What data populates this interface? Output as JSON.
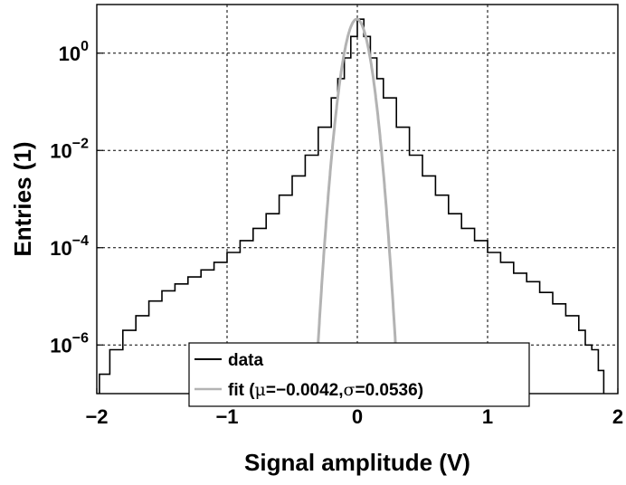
{
  "chart_data": {
    "type": "line",
    "xlabel": "Signal amplitude (V)",
    "ylabel": "Entries (1)",
    "xlim": [
      -2,
      2
    ],
    "ylim": [
      1e-07,
      10
    ],
    "y_scale": "log",
    "grid": true,
    "legend_position": "bottom-center",
    "x_ticks": [
      {
        "value": -2,
        "label": "−2"
      },
      {
        "value": -1,
        "label": "−1"
      },
      {
        "value": 0,
        "label": "0"
      },
      {
        "value": 1,
        "label": "1"
      },
      {
        "value": 2,
        "label": "2"
      }
    ],
    "y_ticks": [
      {
        "value": 1e-06,
        "base": "10",
        "exp": "-6"
      },
      {
        "value": 0.0001,
        "base": "10",
        "exp": "-4"
      },
      {
        "value": 0.01,
        "base": "10",
        "exp": "-2"
      },
      {
        "value": 1,
        "base": "10",
        "exp": "0"
      }
    ],
    "series": [
      {
        "name": "data",
        "color": "#000000",
        "style": "stairs",
        "x": [
          -1.98,
          -1.9,
          -1.8,
          -1.7,
          -1.6,
          -1.5,
          -1.4,
          -1.3,
          -1.2,
          -1.1,
          -1.0,
          -0.9,
          -0.8,
          -0.7,
          -0.6,
          -0.5,
          -0.4,
          -0.3,
          -0.2,
          -0.15,
          -0.1,
          -0.05,
          0.0,
          0.05,
          0.1,
          0.15,
          0.2,
          0.3,
          0.4,
          0.5,
          0.6,
          0.7,
          0.8,
          0.9,
          1.0,
          1.1,
          1.2,
          1.3,
          1.4,
          1.5,
          1.6,
          1.7,
          1.75,
          1.8,
          1.85
        ],
        "y": [
          2.5e-07,
          8e-07,
          2e-06,
          4e-06,
          8e-06,
          1.3e-05,
          1.8e-05,
          2.5e-05,
          3.5e-05,
          5e-05,
          8e-05,
          0.00014,
          0.00025,
          0.0005,
          0.0012,
          0.003,
          0.008,
          0.03,
          0.12,
          0.3,
          0.8,
          2.2,
          5,
          2.2,
          0.8,
          0.3,
          0.12,
          0.03,
          0.008,
          0.003,
          0.0012,
          0.0005,
          0.00025,
          0.00014,
          8e-05,
          5e-05,
          3e-05,
          2e-05,
          1.2e-05,
          7e-06,
          4e-06,
          2e-06,
          1e-06,
          8e-07,
          3e-07
        ]
      },
      {
        "name": "fit (μ=−0.0042,σ=0.0536)",
        "legend_label_parts": [
          "fit (",
          "μ",
          "=−0.0042,",
          "σ",
          "=0.0536)"
        ],
        "color": "#b3b3b3",
        "type": "gaussian",
        "mu": -0.0042,
        "sigma": 0.0536,
        "amplitude": 5
      }
    ]
  }
}
